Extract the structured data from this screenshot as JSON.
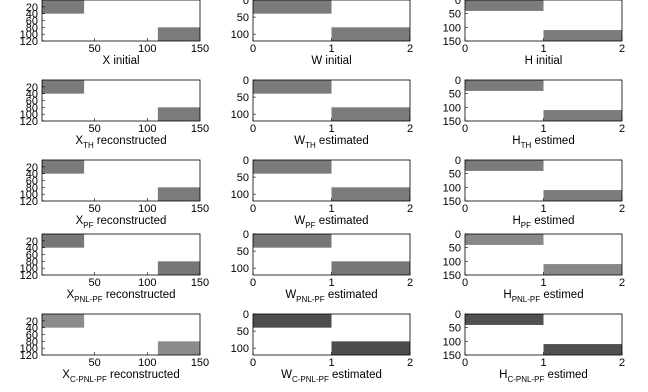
{
  "chart_data": [
    {
      "type": "heatmap",
      "row": 0,
      "col": 0,
      "caption_main": "X",
      "caption_sub": "",
      "caption_tail": " initial",
      "xlim": [
        0,
        150
      ],
      "ylim": [
        0,
        120
      ],
      "xticks": [
        "50",
        "100",
        "150"
      ],
      "yticks": [
        "20",
        "40",
        "60",
        "80",
        "100",
        "120"
      ],
      "blocks": [
        {
          "x": [
            0,
            40
          ],
          "y": [
            0,
            40
          ],
          "color": "#7b7b7b"
        },
        {
          "x": [
            110,
            150
          ],
          "y": [
            80,
            120
          ],
          "color": "#7b7b7b"
        }
      ]
    },
    {
      "type": "heatmap",
      "row": 0,
      "col": 1,
      "caption_main": "W",
      "caption_sub": "",
      "caption_tail": " initial",
      "xlim": [
        0,
        2
      ],
      "ylim": [
        0,
        120
      ],
      "xticks": [
        "0",
        "1",
        "2"
      ],
      "yticks": [
        "0",
        "50",
        "100"
      ],
      "blocks": [
        {
          "x": [
            0,
            1
          ],
          "y": [
            0,
            40
          ],
          "color": "#7b7b7b"
        },
        {
          "x": [
            1,
            2
          ],
          "y": [
            80,
            120
          ],
          "color": "#7b7b7b"
        }
      ]
    },
    {
      "type": "heatmap",
      "row": 0,
      "col": 2,
      "caption_main": "H",
      "caption_sub": "",
      "caption_tail": " initial",
      "xlim": [
        0,
        2
      ],
      "ylim": [
        0,
        150
      ],
      "xticks": [
        "0",
        "1",
        "2"
      ],
      "yticks": [
        "0",
        "50",
        "100",
        "150"
      ],
      "blocks": [
        {
          "x": [
            0,
            1
          ],
          "y": [
            0,
            40
          ],
          "color": "#7b7b7b"
        },
        {
          "x": [
            1,
            2
          ],
          "y": [
            110,
            150
          ],
          "color": "#7b7b7b"
        }
      ]
    },
    {
      "type": "heatmap",
      "row": 1,
      "col": 0,
      "caption_main": "X",
      "caption_sub": "TH",
      "caption_tail": " reconstructed",
      "xlim": [
        0,
        150
      ],
      "ylim": [
        0,
        120
      ],
      "xticks": [
        "50",
        "100",
        "150"
      ],
      "yticks": [
        "20",
        "40",
        "60",
        "80",
        "100",
        "120"
      ],
      "blocks": [
        {
          "x": [
            0,
            40
          ],
          "y": [
            0,
            40
          ],
          "color": "#7b7b7b"
        },
        {
          "x": [
            110,
            150
          ],
          "y": [
            80,
            120
          ],
          "color": "#7b7b7b"
        }
      ]
    },
    {
      "type": "heatmap",
      "row": 1,
      "col": 1,
      "caption_main": "W",
      "caption_sub": "TH",
      "caption_tail": " estimated",
      "xlim": [
        0,
        2
      ],
      "ylim": [
        0,
        120
      ],
      "xticks": [
        "0",
        "1",
        "2"
      ],
      "yticks": [
        "0",
        "50",
        "100"
      ],
      "blocks": [
        {
          "x": [
            0,
            1
          ],
          "y": [
            0,
            40
          ],
          "color": "#7b7b7b"
        },
        {
          "x": [
            1,
            2
          ],
          "y": [
            80,
            120
          ],
          "color": "#7b7b7b"
        }
      ]
    },
    {
      "type": "heatmap",
      "row": 1,
      "col": 2,
      "caption_main": "H",
      "caption_sub": "TH",
      "caption_tail": " estimed",
      "xlim": [
        0,
        2
      ],
      "ylim": [
        0,
        150
      ],
      "xticks": [
        "0",
        "1",
        "2"
      ],
      "yticks": [
        "0",
        "50",
        "100",
        "150"
      ],
      "blocks": [
        {
          "x": [
            0,
            1
          ],
          "y": [
            0,
            40
          ],
          "color": "#7b7b7b"
        },
        {
          "x": [
            1,
            2
          ],
          "y": [
            110,
            150
          ],
          "color": "#7b7b7b"
        }
      ]
    },
    {
      "type": "heatmap",
      "row": 2,
      "col": 0,
      "caption_main": "X",
      "caption_sub": "PF",
      "caption_tail": " reconstructed",
      "xlim": [
        0,
        150
      ],
      "ylim": [
        0,
        120
      ],
      "xticks": [
        "50",
        "100",
        "150"
      ],
      "yticks": [
        "20",
        "40",
        "60",
        "80",
        "100",
        "120"
      ],
      "blocks": [
        {
          "x": [
            0,
            40
          ],
          "y": [
            0,
            40
          ],
          "color": "#7b7b7b"
        },
        {
          "x": [
            110,
            150
          ],
          "y": [
            80,
            120
          ],
          "color": "#7b7b7b"
        }
      ]
    },
    {
      "type": "heatmap",
      "row": 2,
      "col": 1,
      "caption_main": "W",
      "caption_sub": "PF",
      "caption_tail": " estimated",
      "xlim": [
        0,
        2
      ],
      "ylim": [
        0,
        120
      ],
      "xticks": [
        "0",
        "1",
        "2"
      ],
      "yticks": [
        "0",
        "50",
        "100"
      ],
      "blocks": [
        {
          "x": [
            0,
            1
          ],
          "y": [
            0,
            40
          ],
          "color": "#7b7b7b"
        },
        {
          "x": [
            1,
            2
          ],
          "y": [
            80,
            120
          ],
          "color": "#7b7b7b"
        }
      ]
    },
    {
      "type": "heatmap",
      "row": 2,
      "col": 2,
      "caption_main": "H",
      "caption_sub": "PF",
      "caption_tail": " estimed",
      "xlim": [
        0,
        2
      ],
      "ylim": [
        0,
        150
      ],
      "xticks": [
        "0",
        "1",
        "2"
      ],
      "yticks": [
        "0",
        "50",
        "100",
        "150"
      ],
      "blocks": [
        {
          "x": [
            0,
            1
          ],
          "y": [
            0,
            40
          ],
          "color": "#7b7b7b"
        },
        {
          "x": [
            1,
            2
          ],
          "y": [
            110,
            150
          ],
          "color": "#7b7b7b"
        }
      ]
    },
    {
      "type": "heatmap",
      "row": 3,
      "col": 0,
      "caption_main": "X",
      "caption_sub": "PNL-PF",
      "caption_tail": " reconstructed",
      "xlim": [
        0,
        150
      ],
      "ylim": [
        0,
        120
      ],
      "xticks": [
        "50",
        "100",
        "150"
      ],
      "yticks": [
        "20",
        "40",
        "60",
        "80",
        "100",
        "120"
      ],
      "blocks": [
        {
          "x": [
            0,
            40
          ],
          "y": [
            0,
            40
          ],
          "color": "#777777"
        },
        {
          "x": [
            110,
            150
          ],
          "y": [
            80,
            120
          ],
          "color": "#777777"
        }
      ]
    },
    {
      "type": "heatmap",
      "row": 3,
      "col": 1,
      "caption_main": "W",
      "caption_sub": "PNL-PF",
      "caption_tail": " estimated",
      "xlim": [
        0,
        2
      ],
      "ylim": [
        0,
        120
      ],
      "xticks": [
        "0",
        "1",
        "2"
      ],
      "yticks": [
        "0",
        "50",
        "100"
      ],
      "blocks": [
        {
          "x": [
            0,
            1
          ],
          "y": [
            0,
            40
          ],
          "color": "#777777"
        },
        {
          "x": [
            1,
            2
          ],
          "y": [
            80,
            120
          ],
          "color": "#777777"
        }
      ]
    },
    {
      "type": "heatmap",
      "row": 3,
      "col": 2,
      "caption_main": "H",
      "caption_sub": "PNL-PF",
      "caption_tail": " estimed",
      "xlim": [
        0,
        2
      ],
      "ylim": [
        0,
        150
      ],
      "xticks": [
        "0",
        "1",
        "2"
      ],
      "yticks": [
        "0",
        "50",
        "100",
        "150"
      ],
      "blocks": [
        {
          "x": [
            0,
            1
          ],
          "y": [
            0,
            40
          ],
          "color": "#888888"
        },
        {
          "x": [
            1,
            2
          ],
          "y": [
            110,
            150
          ],
          "color": "#888888"
        }
      ]
    },
    {
      "type": "heatmap",
      "row": 4,
      "col": 0,
      "caption_main": "X",
      "caption_sub": "C-PNL-PF",
      "caption_tail": " reconstructed",
      "xlim": [
        0,
        150
      ],
      "ylim": [
        0,
        120
      ],
      "xticks": [
        "50",
        "100",
        "150"
      ],
      "yticks": [
        "20",
        "40",
        "60",
        "80",
        "100",
        "120"
      ],
      "blocks": [
        {
          "x": [
            0,
            40
          ],
          "y": [
            0,
            40
          ],
          "color": "#8c8c8c"
        },
        {
          "x": [
            110,
            150
          ],
          "y": [
            80,
            120
          ],
          "color": "#8c8c8c"
        }
      ]
    },
    {
      "type": "heatmap",
      "row": 4,
      "col": 1,
      "caption_main": "W",
      "caption_sub": "C-PNL-PF",
      "caption_tail": " estimated",
      "xlim": [
        0,
        2
      ],
      "ylim": [
        0,
        120
      ],
      "xticks": [
        "0",
        "1",
        "2"
      ],
      "yticks": [
        "0",
        "50",
        "100"
      ],
      "blocks": [
        {
          "x": [
            0,
            1
          ],
          "y": [
            0,
            40
          ],
          "color": "#4d4d4d"
        },
        {
          "x": [
            1,
            2
          ],
          "y": [
            80,
            120
          ],
          "color": "#4d4d4d"
        }
      ]
    },
    {
      "type": "heatmap",
      "row": 4,
      "col": 2,
      "caption_main": "H",
      "caption_sub": "C-PNL-PF",
      "caption_tail": " estimed",
      "xlim": [
        0,
        2
      ],
      "ylim": [
        0,
        150
      ],
      "xticks": [
        "0",
        "1",
        "2"
      ],
      "yticks": [
        "0",
        "50",
        "100",
        "150"
      ],
      "blocks": [
        {
          "x": [
            0,
            1
          ],
          "y": [
            0,
            40
          ],
          "color": "#505050"
        },
        {
          "x": [
            1,
            2
          ],
          "y": [
            110,
            150
          ],
          "color": "#505050"
        }
      ]
    }
  ]
}
